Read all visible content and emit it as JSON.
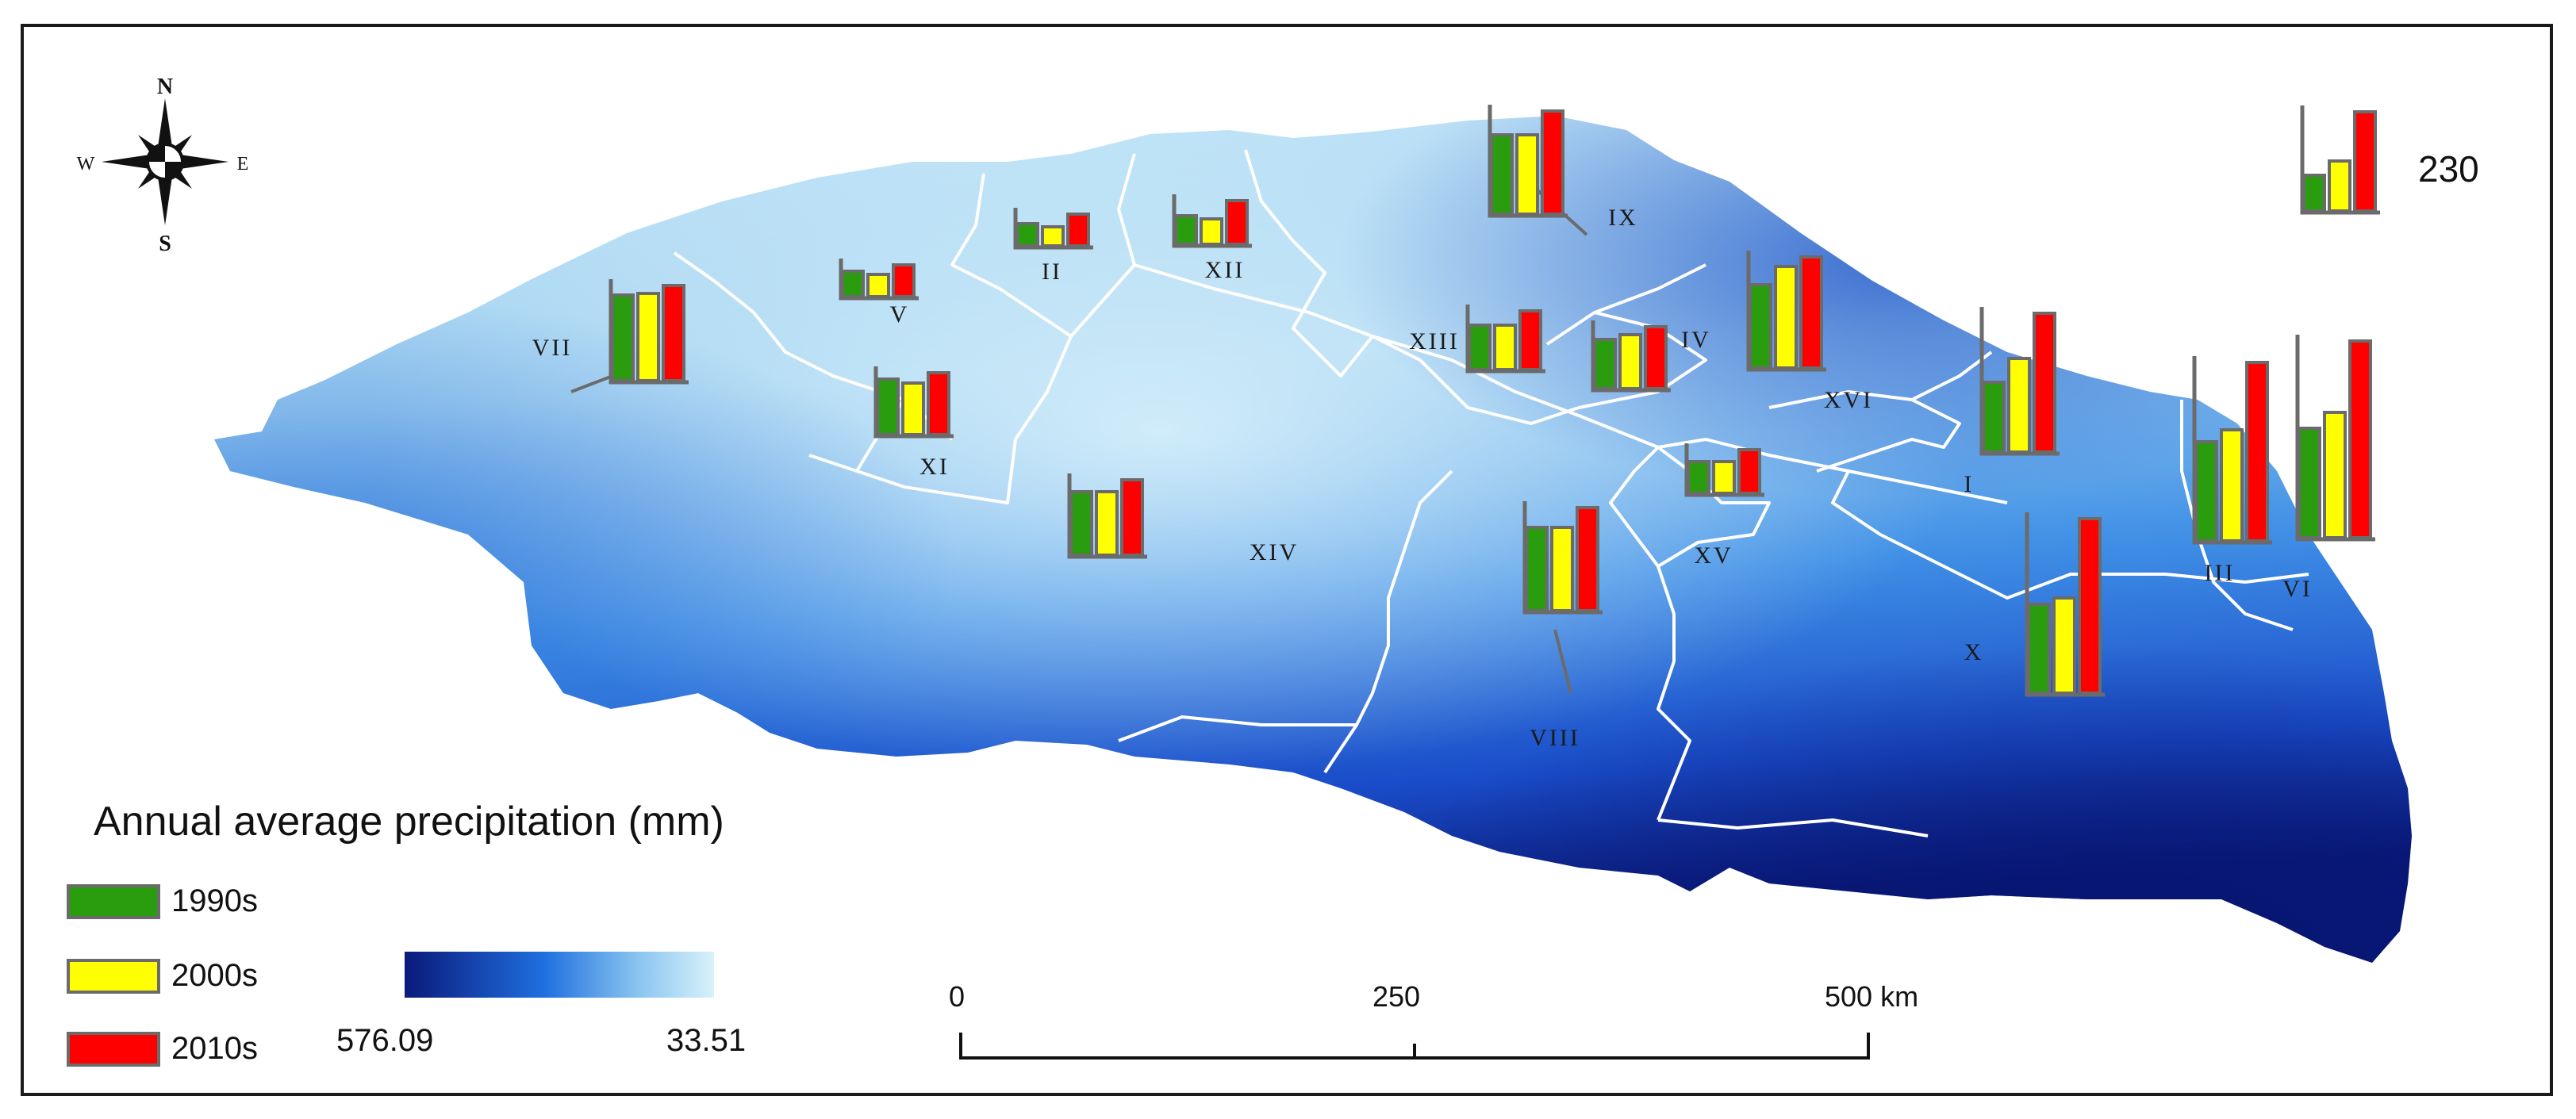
{
  "colors": {
    "1990s": "#2a9d0f",
    "2000s": "#ffff00",
    "2010s": "#ff0000",
    "frame": "#6b6b6b",
    "ramp_high": "#0a1a7a",
    "ramp_low": "#d9f1fb"
  },
  "compass": {
    "n": "N",
    "s": "S",
    "e": "E",
    "w": "W"
  },
  "legend": {
    "title": "Annual average precipitation (mm)",
    "items": [
      {
        "label": "1990s",
        "color": "#2a9d0f"
      },
      {
        "label": "2000s",
        "color": "#ffff00"
      },
      {
        "label": "2010s",
        "color": "#ff0000"
      }
    ],
    "ramp_max": "576.09",
    "ramp_min": "33.51"
  },
  "scale": {
    "ticks": [
      "0",
      "250",
      "500 km"
    ]
  },
  "reference": {
    "value": "230",
    "values": [
      45,
      63,
      125
    ]
  },
  "regions": [
    {
      "id": "I",
      "values": [
        88,
        118,
        175
      ]
    },
    {
      "id": "II",
      "values": [
        28,
        24,
        40
      ]
    },
    {
      "id": "III",
      "values": [
        125,
        140,
        225
      ]
    },
    {
      "id": "IV",
      "values": [
        62,
        68,
        78
      ]
    },
    {
      "id": "V",
      "values": [
        32,
        28,
        40
      ]
    },
    {
      "id": "VI",
      "values": [
        138,
        158,
        248
      ]
    },
    {
      "id": "VII",
      "values": [
        108,
        110,
        120
      ]
    },
    {
      "id": "VIII",
      "values": [
        105,
        105,
        130
      ]
    },
    {
      "id": "IX",
      "values": [
        100,
        100,
        130
      ]
    },
    {
      "id": "X",
      "values": [
        112,
        120,
        220
      ]
    },
    {
      "id": "XI",
      "values": [
        70,
        65,
        78
      ]
    },
    {
      "id": "XII",
      "values": [
        36,
        32,
        55
      ]
    },
    {
      "id": "XIII",
      "values": [
        56,
        56,
        74
      ]
    },
    {
      "id": "XIV",
      "values": [
        80,
        80,
        95
      ]
    },
    {
      "id": "XV",
      "values": [
        40,
        40,
        55
      ]
    },
    {
      "id": "XVI",
      "values": [
        105,
        128,
        140
      ]
    }
  ]
}
